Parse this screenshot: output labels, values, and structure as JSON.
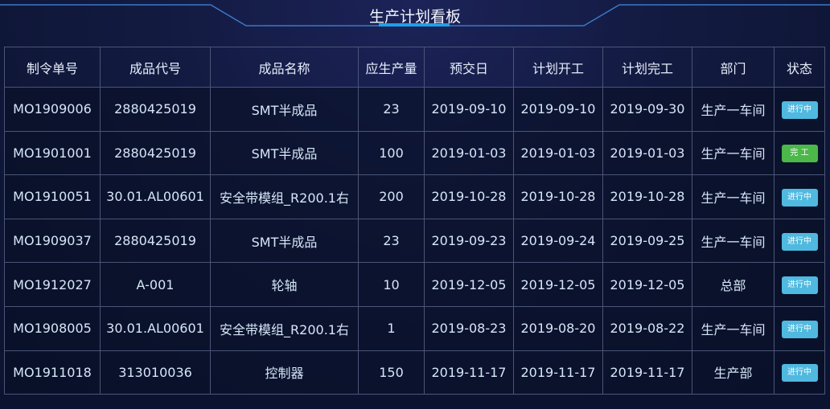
{
  "header": {
    "title": "生产计划看板"
  },
  "colors": {
    "in_progress": "#4fb9df",
    "done": "#4cb84a"
  },
  "table": {
    "columns": [
      "制令单号",
      "成品代号",
      "成品名称",
      "应生产量",
      "预交日",
      "计划开工",
      "计划完工",
      "部门",
      "状态"
    ],
    "rows": [
      [
        "MO1909006",
        "2880425019",
        "SMT半成品",
        "23",
        "2019-09-10",
        "2019-09-10",
        "2019-09-30",
        "生产一车间",
        "进行中"
      ],
      [
        "MO1901001",
        "2880425019",
        "SMT半成品",
        "100",
        "2019-01-03",
        "2019-01-03",
        "2019-01-03",
        "生产一车间",
        "完 工"
      ],
      [
        "MO1910051",
        "30.01.AL00601",
        "安全带模组_R200.1右",
        "200",
        "2019-10-28",
        "2019-10-28",
        "2019-10-28",
        "生产一车间",
        "进行中"
      ],
      [
        "MO1909037",
        "2880425019",
        "SMT半成品",
        "23",
        "2019-09-23",
        "2019-09-24",
        "2019-09-25",
        "生产一车间",
        "进行中"
      ],
      [
        "MO1912027",
        "A-001",
        "轮轴",
        "10",
        "2019-12-05",
        "2019-12-05",
        "2019-12-05",
        "总部",
        "进行中"
      ],
      [
        "MO1908005",
        "30.01.AL00601",
        "安全带模组_R200.1右",
        "1",
        "2019-08-23",
        "2019-08-20",
        "2019-08-22",
        "生产一车间",
        "进行中"
      ],
      [
        "MO1911018",
        "313010036",
        "控制器",
        "150",
        "2019-11-17",
        "2019-11-17",
        "2019-11-17",
        "生产部",
        "进行中"
      ]
    ]
  }
}
